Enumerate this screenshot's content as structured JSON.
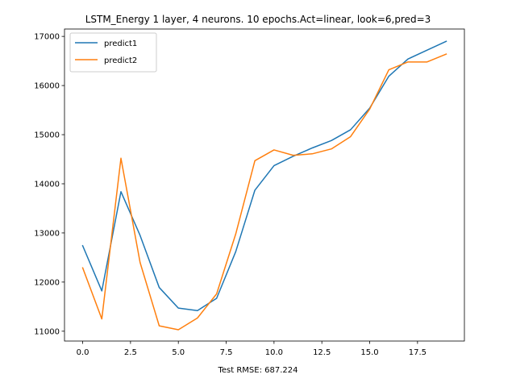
{
  "chart_data": {
    "type": "line",
    "title": "LSTM_Energy 1 layer, 4 neurons. 10 epochs.Act=linear, look=6,pred=3",
    "xlabel": "Test RMSE: 687.224",
    "ylabel": "",
    "xlim": [
      -0.95,
      19.95
    ],
    "ylim": [
      10800,
      17150
    ],
    "xticks": [
      0,
      2.5,
      5,
      7.5,
      10,
      12.5,
      15,
      17.5
    ],
    "xtick_labels": [
      "0.0",
      "2.5",
      "5.0",
      "7.5",
      "10.0",
      "12.5",
      "15.0",
      "17.5"
    ],
    "yticks": [
      11000,
      12000,
      13000,
      14000,
      15000,
      16000,
      17000
    ],
    "ytick_labels": [
      "11000",
      "12000",
      "13000",
      "14000",
      "15000",
      "16000",
      "17000"
    ],
    "grid": false,
    "legend": "top-left",
    "x": [
      0,
      1,
      2,
      3,
      4,
      5,
      6,
      7,
      8,
      9,
      10,
      11,
      12,
      13,
      14,
      15,
      16,
      17,
      18,
      19
    ],
    "series": [
      {
        "name": "predict1",
        "color": "#1f77b4",
        "values": [
          12740,
          11820,
          13840,
          12950,
          11890,
          11470,
          11420,
          11670,
          12620,
          13870,
          14370,
          14560,
          14730,
          14880,
          15100,
          15540,
          16190,
          16540,
          16720,
          16900
        ]
      },
      {
        "name": "predict2",
        "color": "#ff7f0e",
        "values": [
          12290,
          11250,
          14520,
          12400,
          11110,
          11030,
          11270,
          11760,
          12980,
          14470,
          14690,
          14580,
          14610,
          14710,
          14960,
          15520,
          16320,
          16480,
          16480,
          16640
        ]
      }
    ]
  }
}
